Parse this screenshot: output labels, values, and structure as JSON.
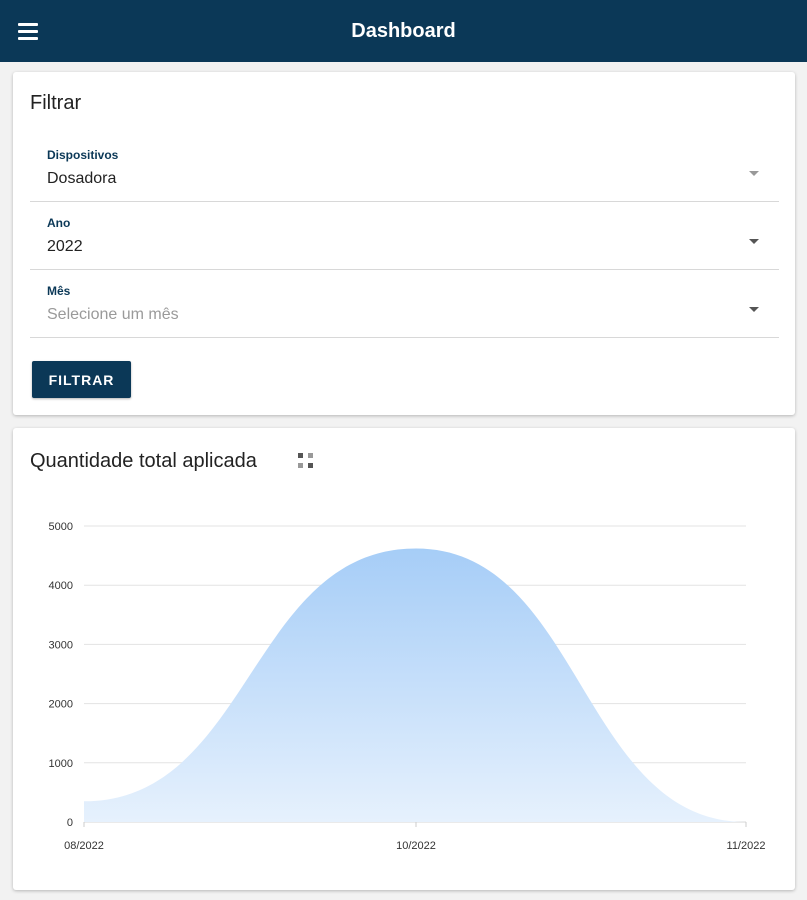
{
  "appbar": {
    "title": "Dashboard",
    "menu_icon": "hamburger-menu-icon",
    "background": "#0b3857"
  },
  "filter": {
    "title": "Filtrar",
    "fields": [
      {
        "label": "Dispositivos",
        "value": "Dosadora",
        "placeholder": false
      },
      {
        "label": "Ano",
        "value": "2022",
        "placeholder": false
      },
      {
        "label": "Mês",
        "value": "Selecione um mês",
        "placeholder": true
      }
    ],
    "button_label": "FILTRAR"
  },
  "chart_card": {
    "title": "Quantidade total aplicada",
    "menu_icon": "grid-menu-icon"
  },
  "chart_data": {
    "type": "area",
    "x": [
      "08/2022",
      "10/2022",
      "11/2022"
    ],
    "series": [
      {
        "values": [
          350,
          4620,
          0
        ]
      }
    ],
    "ylim": [
      0,
      5000
    ],
    "yticks": [
      0,
      1000,
      2000,
      3000,
      4000,
      5000
    ],
    "grid": true,
    "color_top": "#a6cdf7",
    "color_bottom": "#e6f1fd",
    "title": "",
    "xlabel": "",
    "ylabel": ""
  }
}
